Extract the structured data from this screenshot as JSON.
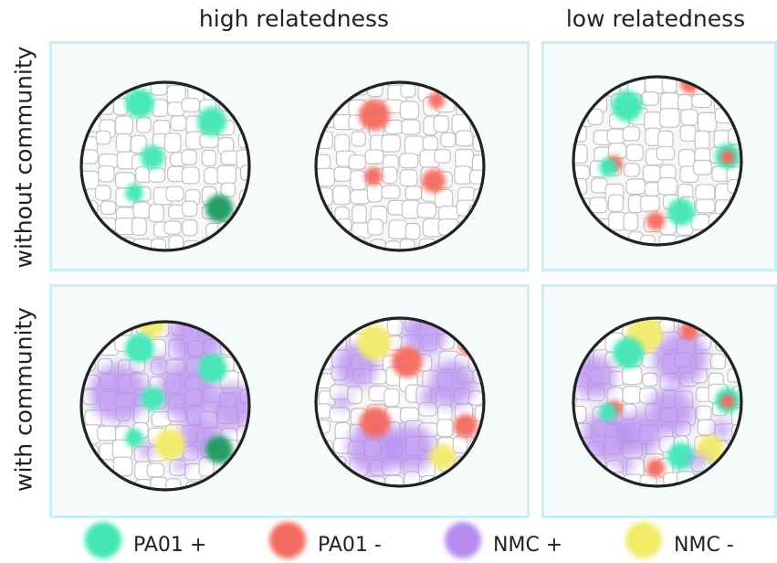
{
  "columns": [
    "high relatedness",
    "low relatedness"
  ],
  "rows": [
    "without community",
    "with community"
  ],
  "legend": [
    {
      "label": "PA01 +",
      "color": "#3fe6b6"
    },
    {
      "label": "PA01 -",
      "color": "#f46a5e"
    },
    {
      "label": "NMC +",
      "color": "#b68cf0"
    },
    {
      "label": "NMC -",
      "color": "#f3ea6a"
    }
  ],
  "colors": {
    "panel_border": "#c9eef3",
    "cell_line": "#c4c4c4",
    "dish_ring": "#222222",
    "dark_green": "#1f9a5e"
  }
}
